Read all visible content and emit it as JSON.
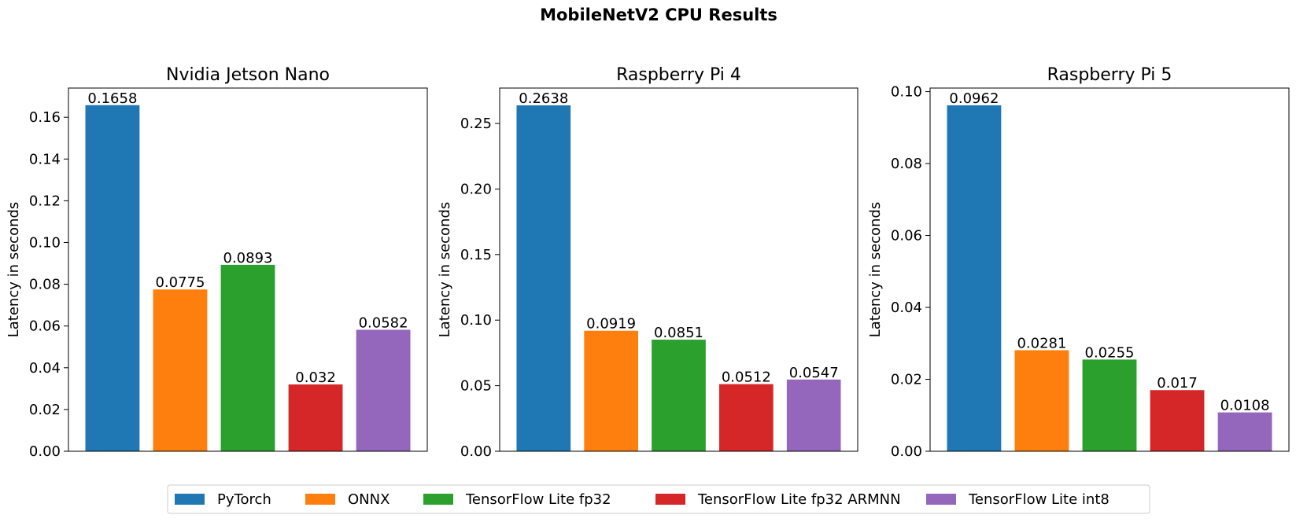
{
  "figure_title": "MobileNetV2 CPU Results",
  "colors": {
    "PyTorch": "#1f77b4",
    "ONNX": "#ff7f0e",
    "TensorFlow Lite fp32": "#2ca02c",
    "TensorFlow Lite fp32 ARMNN": "#d62728",
    "TensorFlow Lite int8": "#9467bd"
  },
  "legend": {
    "placement": "bottom-center",
    "entries": [
      "PyTorch",
      "ONNX",
      "TensorFlow Lite fp32",
      "TensorFlow Lite fp32 ARMNN",
      "TensorFlow Lite int8"
    ]
  },
  "chart_data": [
    {
      "type": "bar",
      "title": "Nvidia Jetson Nano",
      "ylabel": "Latency in seconds",
      "xlabel": "",
      "ylim": [
        0,
        0.174
      ],
      "yticks": [
        0.0,
        0.02,
        0.04,
        0.06,
        0.08,
        0.1,
        0.12,
        0.14,
        0.16
      ],
      "ytick_labels": [
        "0.00",
        "0.02",
        "0.04",
        "0.06",
        "0.08",
        "0.10",
        "0.12",
        "0.14",
        "0.16"
      ],
      "grid": false,
      "categories": [
        "PyTorch",
        "ONNX",
        "TensorFlow Lite fp32",
        "TensorFlow Lite fp32 ARMNN",
        "TensorFlow Lite int8"
      ],
      "values": [
        0.1658,
        0.0775,
        0.0893,
        0.032,
        0.0582
      ],
      "labels": [
        "0.1658",
        "0.0775",
        "0.0893",
        "0.032",
        "0.0582"
      ]
    },
    {
      "type": "bar",
      "title": "Raspberry Pi 4",
      "ylabel": "Latency in seconds",
      "xlabel": "",
      "ylim": [
        0,
        0.277
      ],
      "yticks": [
        0.0,
        0.05,
        0.1,
        0.15,
        0.2,
        0.25
      ],
      "ytick_labels": [
        "0.00",
        "0.05",
        "0.10",
        "0.15",
        "0.20",
        "0.25"
      ],
      "grid": false,
      "categories": [
        "PyTorch",
        "ONNX",
        "TensorFlow Lite fp32",
        "TensorFlow Lite fp32 ARMNN",
        "TensorFlow Lite int8"
      ],
      "values": [
        0.2638,
        0.0919,
        0.0851,
        0.0512,
        0.0547
      ],
      "labels": [
        "0.2638",
        "0.0919",
        "0.0851",
        "0.0512",
        "0.0547"
      ]
    },
    {
      "type": "bar",
      "title": "Raspberry Pi 5",
      "ylabel": "Latency in seconds",
      "xlabel": "",
      "ylim": [
        0,
        0.101
      ],
      "yticks": [
        0.0,
        0.02,
        0.04,
        0.06,
        0.08,
        0.1
      ],
      "ytick_labels": [
        "0.00",
        "0.02",
        "0.04",
        "0.06",
        "0.08",
        "0.10"
      ],
      "grid": false,
      "categories": [
        "PyTorch",
        "ONNX",
        "TensorFlow Lite fp32",
        "TensorFlow Lite fp32 ARMNN",
        "TensorFlow Lite int8"
      ],
      "values": [
        0.0962,
        0.0281,
        0.0255,
        0.017,
        0.0108
      ],
      "labels": [
        "0.0962",
        "0.0281",
        "0.0255",
        "0.017",
        "0.0108"
      ]
    }
  ]
}
